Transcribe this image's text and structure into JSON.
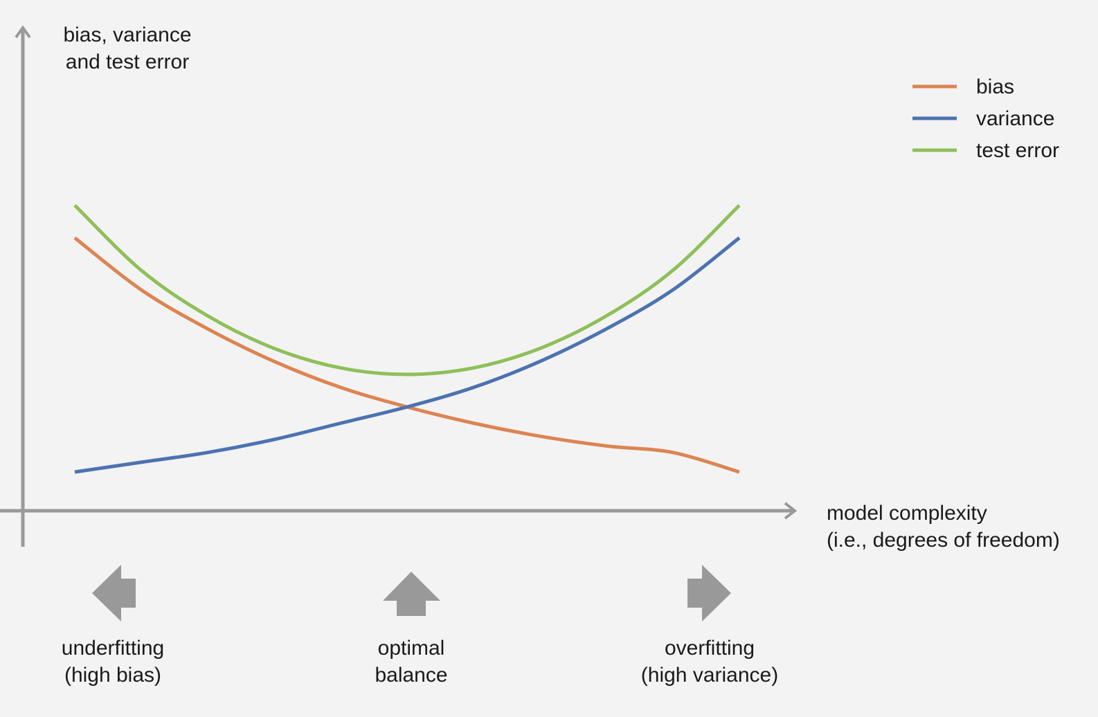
{
  "chart_data": {
    "type": "line",
    "ylabel": [
      "bias, variance",
      "and test error"
    ],
    "xlabel": [
      "model complexity",
      "(i.e., degrees of freedom)"
    ],
    "x_range": [
      0,
      1
    ],
    "y_range": [
      0,
      1
    ],
    "ticks": "none",
    "grid": false,
    "legend_position": "top-right",
    "series": [
      {
        "name": "bias",
        "color": "#dd8452",
        "x": [
          0,
          0.1,
          0.2,
          0.3,
          0.4,
          0.5,
          0.6,
          0.7,
          0.8,
          0.9,
          1.0
        ],
        "y": [
          0.72,
          0.56,
          0.44,
          0.34,
          0.26,
          0.2,
          0.15,
          0.11,
          0.08,
          0.06,
          0.0
        ]
      },
      {
        "name": "variance",
        "color": "#4c72b0",
        "x": [
          0,
          0.1,
          0.2,
          0.3,
          0.4,
          0.5,
          0.6,
          0.7,
          0.8,
          0.9,
          1.0
        ],
        "y": [
          0.0,
          0.03,
          0.06,
          0.1,
          0.15,
          0.2,
          0.26,
          0.34,
          0.44,
          0.56,
          0.72
        ]
      },
      {
        "name": "test error",
        "color": "#8fbf5a",
        "x": [
          0,
          0.1,
          0.2,
          0.3,
          0.4,
          0.5,
          0.6,
          0.7,
          0.8,
          0.9,
          1.0
        ],
        "y": [
          0.82,
          0.62,
          0.48,
          0.38,
          0.32,
          0.3,
          0.32,
          0.38,
          0.48,
          0.62,
          0.82
        ]
      }
    ],
    "annotations": [
      {
        "id": "underfitting",
        "lines": [
          "underfitting",
          "(high bias)"
        ],
        "arrow": "left"
      },
      {
        "id": "optimal",
        "lines": [
          "optimal",
          "balance"
        ],
        "arrow": "up"
      },
      {
        "id": "overfitting",
        "lines": [
          "overfitting",
          "(high variance)"
        ],
        "arrow": "right"
      }
    ],
    "axis_color": "#999999",
    "arrow_color": "#999999"
  }
}
